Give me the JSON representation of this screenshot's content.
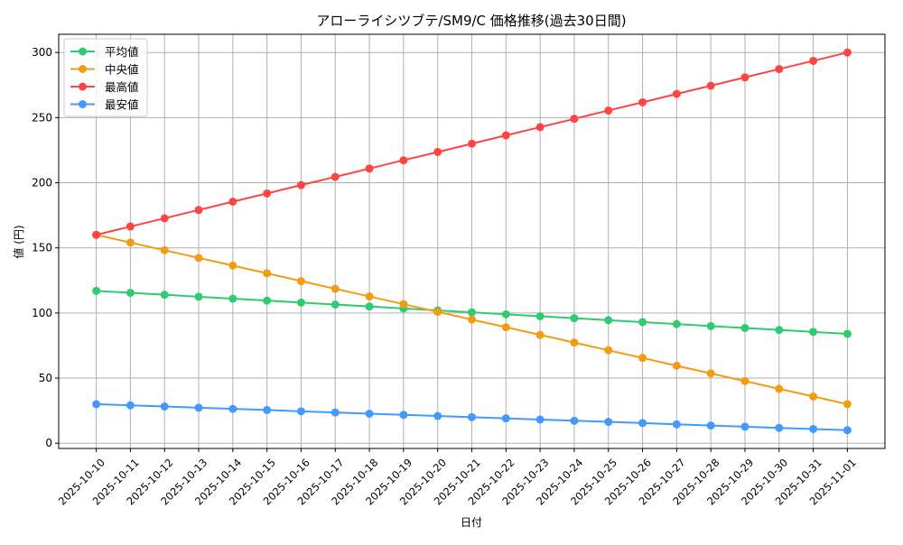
{
  "chart_data": {
    "type": "line",
    "title": "アローライシツブテ/SM9/C 価格推移(過去30日間)",
    "xlabel": "日付",
    "ylabel": "値 (円)",
    "ylim": [
      -4,
      314
    ],
    "yticks": [
      0,
      50,
      100,
      150,
      200,
      250,
      300
    ],
    "grid": true,
    "legend_position": "top-left",
    "categories": [
      "2025-10-10",
      "2025-10-11",
      "2025-10-12",
      "2025-10-13",
      "2025-10-14",
      "2025-10-15",
      "2025-10-16",
      "2025-10-17",
      "2025-10-18",
      "2025-10-19",
      "2025-10-20",
      "2025-10-21",
      "2025-10-22",
      "2025-10-23",
      "2025-10-24",
      "2025-10-25",
      "2025-10-26",
      "2025-10-27",
      "2025-10-28",
      "2025-10-29",
      "2025-10-30",
      "2025-10-31",
      "2025-11-01"
    ],
    "series": [
      {
        "name": "平均値",
        "color": "#2ecc71",
        "values": [
          117,
          115.5,
          114,
          112.5,
          111,
          109.5,
          108,
          106.5,
          105,
          103.5,
          102,
          100.5,
          99,
          97.5,
          96,
          94.5,
          93,
          91.5,
          90,
          88.5,
          87,
          85.5,
          84
        ]
      },
      {
        "name": "中央値",
        "color": "#f39c12",
        "values": [
          160,
          154.1,
          148.2,
          142.3,
          136.4,
          130.5,
          124.5,
          118.6,
          112.7,
          106.8,
          100.9,
          95,
          89.1,
          83.2,
          77.3,
          71.4,
          65.5,
          59.5,
          53.6,
          47.7,
          41.8,
          35.9,
          30
        ]
      },
      {
        "name": "最高値",
        "color": "#ff4444",
        "values": [
          160,
          166.4,
          172.7,
          179.1,
          185.5,
          191.8,
          198.2,
          204.5,
          210.9,
          217.3,
          223.6,
          230,
          236.4,
          242.7,
          249.1,
          255.5,
          261.8,
          268.2,
          274.5,
          280.9,
          287.3,
          293.6,
          300
        ]
      },
      {
        "name": "最安値",
        "color": "#4499ff",
        "values": [
          30,
          29.1,
          28.2,
          27.3,
          26.4,
          25.5,
          24.5,
          23.6,
          22.7,
          21.8,
          20.9,
          20,
          19.1,
          18.2,
          17.3,
          16.4,
          15.5,
          14.5,
          13.6,
          12.7,
          11.8,
          10.9,
          10
        ]
      }
    ]
  }
}
